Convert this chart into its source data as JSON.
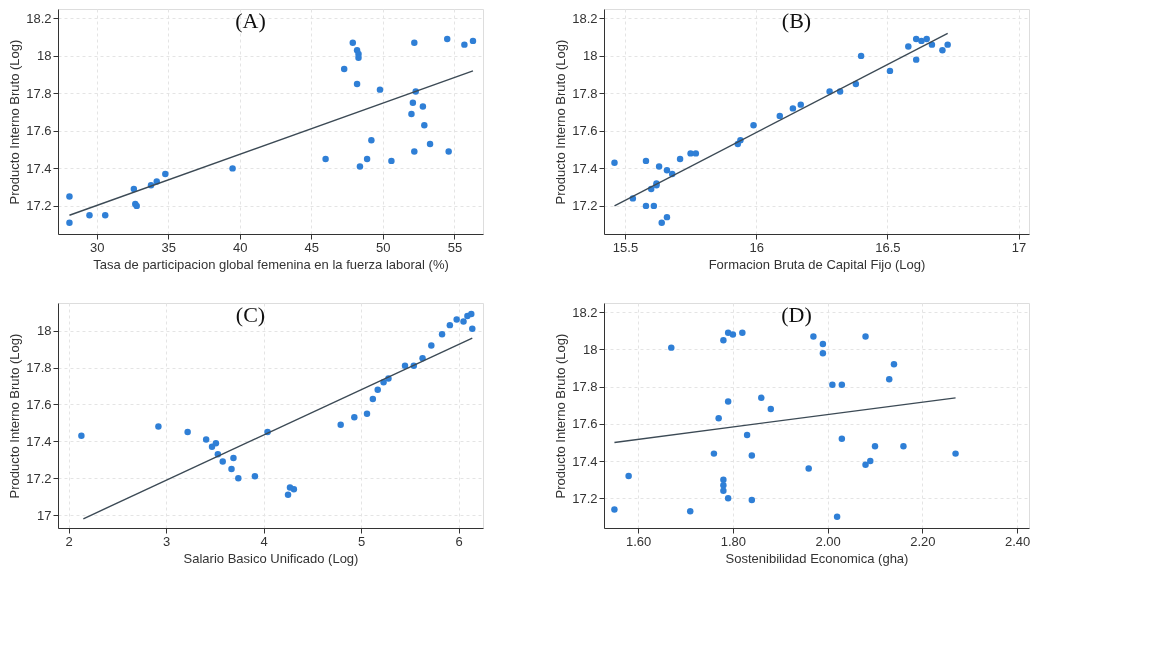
{
  "chart_data": [
    {
      "type": "scatter",
      "annotations": [
        "(A)"
      ],
      "xlabel": "Tasa de participacion global femenina en la fuerza laboral (%)",
      "ylabel": "Producto Interno Bruto (Log)",
      "xlim": [
        27.3,
        57.0
      ],
      "ylim": [
        17.05,
        18.25
      ],
      "xticks": [
        30,
        35,
        40,
        45,
        50,
        55
      ],
      "yticks": [
        17.2,
        17.4,
        17.6,
        17.8,
        18,
        18.2
      ],
      "grid": true,
      "marker": "circle",
      "series": [
        {
          "color": "#2f7fd6",
          "x": [
            28.1,
            28.1,
            29.5,
            30.6,
            32.6,
            32.7,
            32.8,
            33.8,
            34.2,
            34.8,
            39.5,
            46.0,
            47.3,
            47.9,
            48.2,
            48.2,
            48.3,
            48.3,
            48.4,
            48.9,
            49.2,
            49.8,
            50.6,
            52.0,
            52.1,
            52.2,
            52.2,
            52.3,
            52.8,
            52.9,
            53.3,
            54.5,
            54.6,
            55.7,
            56.3
          ],
          "values": [
            17.11,
            17.25,
            17.15,
            17.15,
            17.29,
            17.21,
            17.2,
            17.31,
            17.33,
            17.37,
            17.4,
            17.45,
            17.93,
            18.07,
            17.85,
            18.03,
            18.01,
            17.99,
            17.41,
            17.45,
            17.55,
            17.82,
            17.44,
            17.69,
            17.75,
            18.07,
            17.49,
            17.81,
            17.73,
            17.63,
            17.53,
            18.09,
            17.49,
            18.06,
            18.08
          ]
        },
        {
          "type": "line",
          "marker": "none",
          "color": "#3c4a55",
          "x": [
            28.1,
            56.3
          ],
          "values": [
            17.15,
            17.92
          ]
        }
      ]
    },
    {
      "type": "scatter",
      "annotations": [
        "(B)"
      ],
      "xlabel": "Formacion Bruta de Capital Fijo (Log)",
      "ylabel": "Producto Interno Bruto (Log)",
      "xlim": [
        15.42,
        17.04
      ],
      "ylim": [
        17.05,
        18.25
      ],
      "xticks": [
        15.5,
        16,
        16.5,
        17
      ],
      "yticks": [
        17.2,
        17.4,
        17.6,
        17.8,
        18,
        18.2
      ],
      "grid": true,
      "marker": "circle",
      "series": [
        {
          "color": "#2f7fd6",
          "x": [
            15.46,
            15.53,
            15.58,
            15.58,
            15.6,
            15.61,
            15.62,
            15.62,
            15.63,
            15.64,
            15.66,
            15.66,
            15.68,
            15.71,
            15.75,
            15.77,
            15.93,
            15.94,
            15.99,
            16.09,
            16.14,
            16.17,
            16.28,
            16.32,
            16.38,
            16.4,
            16.51,
            16.58,
            16.61,
            16.61,
            16.63,
            16.65,
            16.67,
            16.71,
            16.73
          ],
          "values": [
            17.43,
            17.24,
            17.2,
            17.44,
            17.29,
            17.2,
            17.32,
            17.31,
            17.41,
            17.11,
            17.39,
            17.14,
            17.37,
            17.45,
            17.48,
            17.48,
            17.53,
            17.55,
            17.63,
            17.68,
            17.72,
            17.74,
            17.81,
            17.81,
            17.85,
            18.0,
            17.92,
            18.05,
            18.09,
            17.98,
            18.08,
            18.09,
            18.06,
            18.03,
            18.06
          ]
        },
        {
          "type": "line",
          "marker": "none",
          "color": "#3c4a55",
          "x": [
            15.46,
            16.73
          ],
          "values": [
            17.2,
            18.12
          ]
        }
      ]
    },
    {
      "type": "scatter",
      "annotations": [
        "(C)"
      ],
      "xlabel": "Salario Basico Unificado (Log)",
      "ylabel": "Producto Interno Bruto (Log)",
      "xlim": [
        1.89,
        6.25
      ],
      "ylim": [
        16.93,
        18.15
      ],
      "xticks": [
        2,
        3,
        4,
        5,
        6
      ],
      "yticks": [
        17,
        17.2,
        17.4,
        17.6,
        17.8,
        18
      ],
      "grid": true,
      "marker": "circle",
      "series": [
        {
          "color": "#2f7fd6",
          "x": [
            2.13,
            2.92,
            3.22,
            3.41,
            3.47,
            3.51,
            3.53,
            3.58,
            3.67,
            3.69,
            3.74,
            3.91,
            4.04,
            4.25,
            4.27,
            4.31,
            4.79,
            4.93,
            5.06,
            5.12,
            5.17,
            5.23,
            5.28,
            5.45,
            5.54,
            5.63,
            5.72,
            5.83,
            5.91,
            5.98,
            6.05,
            6.09,
            6.13,
            6.14
          ],
          "values": [
            17.43,
            17.48,
            17.45,
            17.41,
            17.37,
            17.39,
            17.33,
            17.29,
            17.25,
            17.31,
            17.2,
            17.21,
            17.45,
            17.11,
            17.15,
            17.14,
            17.49,
            17.53,
            17.55,
            17.63,
            17.68,
            17.72,
            17.74,
            17.81,
            17.81,
            17.85,
            17.92,
            17.98,
            18.03,
            18.06,
            18.05,
            18.08,
            18.09,
            18.01
          ]
        },
        {
          "type": "line",
          "marker": "none",
          "color": "#3c4a55",
          "x": [
            2.15,
            6.14
          ],
          "values": [
            16.98,
            17.96
          ]
        }
      ]
    },
    {
      "type": "scatter",
      "annotations": [
        "(D)"
      ],
      "xlabel": "Sostenibilidad Economica (gha)",
      "ylabel": "Producto Interno Bruto (Log)",
      "xlim": [
        1.528,
        2.425
      ],
      "ylim": [
        17.04,
        18.25
      ],
      "xticks": [
        {
          "value": 1.6,
          "label": "1.60"
        },
        {
          "value": 1.8,
          "label": "1.80"
        },
        {
          "value": 2.0,
          "label": "2.00"
        },
        {
          "value": 2.2,
          "label": "2.20"
        },
        {
          "value": 2.4,
          "label": "2.40"
        }
      ],
      "yticks": [
        17.2,
        17.4,
        17.6,
        17.8,
        18,
        18.2
      ],
      "grid": true,
      "marker": "circle",
      "series": [
        {
          "color": "#2f7fd6",
          "x": [
            1.55,
            1.58,
            1.67,
            1.71,
            1.76,
            1.77,
            1.78,
            1.78,
            1.78,
            1.78,
            1.79,
            1.79,
            1.79,
            1.8,
            1.82,
            1.83,
            1.84,
            1.84,
            1.86,
            1.88,
            1.96,
            1.97,
            1.99,
            1.99,
            2.01,
            2.02,
            2.03,
            2.03,
            2.08,
            2.08,
            2.09,
            2.1,
            2.13,
            2.14,
            2.16,
            2.27
          ],
          "values": [
            17.14,
            17.32,
            18.01,
            17.13,
            17.44,
            17.63,
            18.05,
            17.3,
            17.27,
            17.24,
            18.09,
            17.72,
            17.2,
            18.08,
            18.09,
            17.54,
            17.43,
            17.19,
            17.74,
            17.68,
            17.36,
            18.07,
            18.03,
            17.98,
            17.81,
            17.1,
            17.81,
            17.52,
            18.07,
            17.38,
            17.4,
            17.48,
            17.84,
            17.92,
            17.48,
            17.44
          ]
        },
        {
          "type": "line",
          "marker": "none",
          "color": "#3c4a55",
          "x": [
            1.55,
            2.27
          ],
          "values": [
            17.5,
            17.74
          ]
        }
      ]
    }
  ]
}
